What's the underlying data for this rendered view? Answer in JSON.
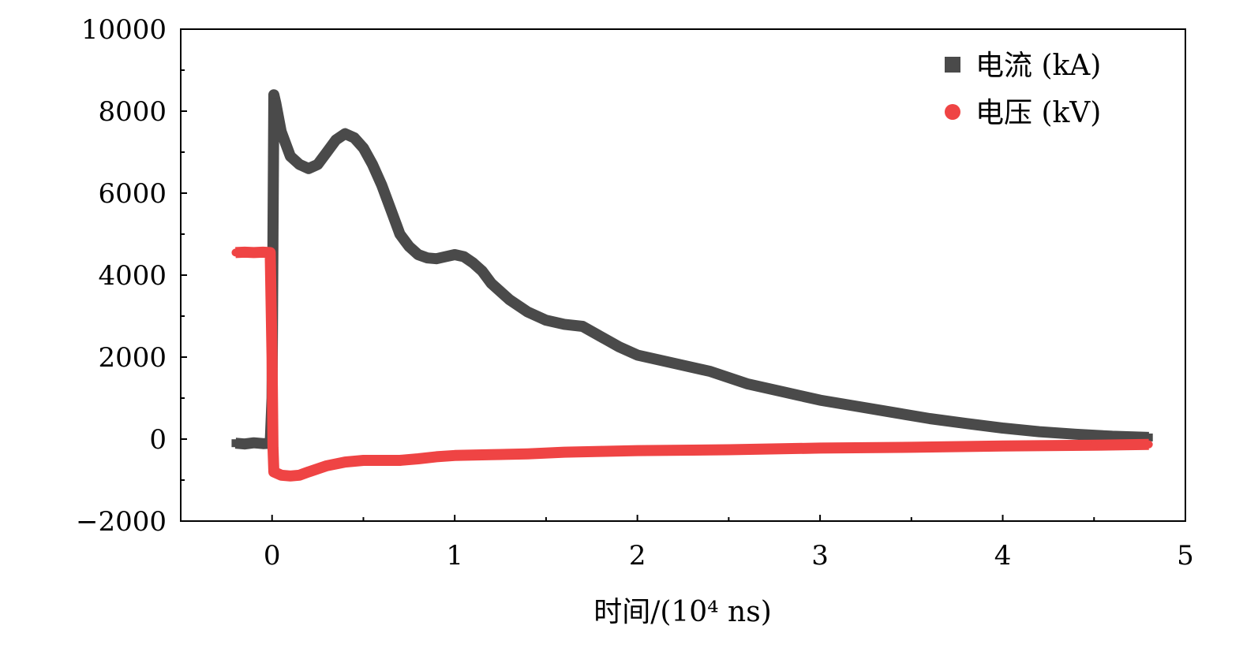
{
  "chart_data": {
    "type": "scatter",
    "xlabel": "时间/(10⁴ ns)",
    "ylabel": "",
    "xlim": [
      -0.5,
      5
    ],
    "ylim": [
      -2000,
      10000
    ],
    "x_ticks": [
      0,
      1,
      2,
      3,
      4,
      5
    ],
    "x_tick_labels": [
      "0",
      "1",
      "2",
      "3",
      "4",
      "5"
    ],
    "y_ticks": [
      -2000,
      0,
      2000,
      4000,
      6000,
      8000,
      10000
    ],
    "y_tick_labels": [
      "−2000",
      "0",
      "2000",
      "4000",
      "6000",
      "8000",
      "10000"
    ],
    "grid": false,
    "legend_position": "top-right",
    "series": [
      {
        "name": "电流 (kA)",
        "color": "#4a4a4a",
        "marker": "square",
        "points": [
          [
            -0.2,
            -100
          ],
          [
            -0.15,
            -120
          ],
          [
            -0.1,
            -90
          ],
          [
            -0.05,
            -110
          ],
          [
            -0.01,
            -100
          ],
          [
            0.0,
            1000
          ],
          [
            0.005,
            5000
          ],
          [
            0.01,
            8400
          ],
          [
            0.02,
            8200
          ],
          [
            0.05,
            7500
          ],
          [
            0.1,
            6900
          ],
          [
            0.15,
            6700
          ],
          [
            0.2,
            6600
          ],
          [
            0.25,
            6700
          ],
          [
            0.3,
            7000
          ],
          [
            0.35,
            7300
          ],
          [
            0.4,
            7450
          ],
          [
            0.45,
            7350
          ],
          [
            0.5,
            7100
          ],
          [
            0.55,
            6700
          ],
          [
            0.6,
            6200
          ],
          [
            0.65,
            5600
          ],
          [
            0.7,
            5000
          ],
          [
            0.75,
            4700
          ],
          [
            0.8,
            4500
          ],
          [
            0.85,
            4420
          ],
          [
            0.9,
            4400
          ],
          [
            0.95,
            4450
          ],
          [
            1.0,
            4500
          ],
          [
            1.05,
            4450
          ],
          [
            1.1,
            4300
          ],
          [
            1.15,
            4100
          ],
          [
            1.2,
            3800
          ],
          [
            1.3,
            3400
          ],
          [
            1.4,
            3100
          ],
          [
            1.5,
            2900
          ],
          [
            1.6,
            2800
          ],
          [
            1.7,
            2750
          ],
          [
            1.8,
            2500
          ],
          [
            1.9,
            2250
          ],
          [
            2.0,
            2050
          ],
          [
            2.2,
            1850
          ],
          [
            2.4,
            1650
          ],
          [
            2.6,
            1350
          ],
          [
            2.8,
            1150
          ],
          [
            3.0,
            950
          ],
          [
            3.2,
            800
          ],
          [
            3.4,
            650
          ],
          [
            3.6,
            500
          ],
          [
            3.8,
            380
          ],
          [
            4.0,
            270
          ],
          [
            4.2,
            180
          ],
          [
            4.4,
            120
          ],
          [
            4.6,
            70
          ],
          [
            4.8,
            40
          ]
        ]
      },
      {
        "name": "电压 (kV)",
        "color": "#ef4444",
        "marker": "circle",
        "points": [
          [
            -0.2,
            4550
          ],
          [
            -0.15,
            4560
          ],
          [
            -0.1,
            4550
          ],
          [
            -0.05,
            4560
          ],
          [
            -0.01,
            4550
          ],
          [
            0.0,
            2000
          ],
          [
            0.005,
            -200
          ],
          [
            0.01,
            -800
          ],
          [
            0.05,
            -880
          ],
          [
            0.1,
            -900
          ],
          [
            0.15,
            -880
          ],
          [
            0.2,
            -800
          ],
          [
            0.3,
            -650
          ],
          [
            0.4,
            -560
          ],
          [
            0.5,
            -520
          ],
          [
            0.6,
            -520
          ],
          [
            0.7,
            -520
          ],
          [
            0.8,
            -480
          ],
          [
            0.9,
            -430
          ],
          [
            1.0,
            -400
          ],
          [
            1.2,
            -380
          ],
          [
            1.4,
            -360
          ],
          [
            1.6,
            -320
          ],
          [
            1.8,
            -300
          ],
          [
            2.0,
            -280
          ],
          [
            2.5,
            -260
          ],
          [
            3.0,
            -220
          ],
          [
            3.5,
            -200
          ],
          [
            4.0,
            -170
          ],
          [
            4.5,
            -150
          ],
          [
            4.8,
            -130
          ]
        ]
      }
    ]
  }
}
